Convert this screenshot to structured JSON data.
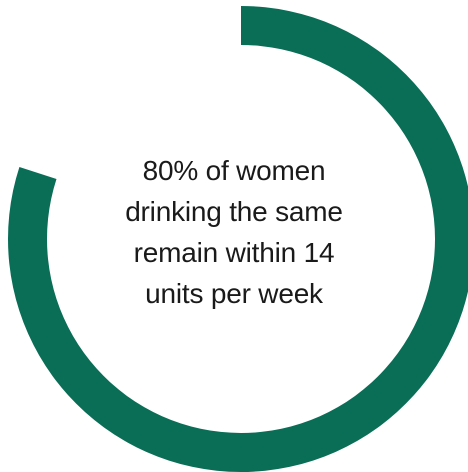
{
  "chart_data": {
    "type": "pie",
    "style": "donut",
    "segments": [
      {
        "label": "",
        "value": 80,
        "color": "#0a6e57"
      },
      {
        "label": "",
        "value": 20,
        "color": "#ffffff"
      }
    ],
    "start": "top, clockwise",
    "center_text": [
      "80% of women",
      "drinking the same",
      "remain within 14",
      "units per week"
    ]
  }
}
